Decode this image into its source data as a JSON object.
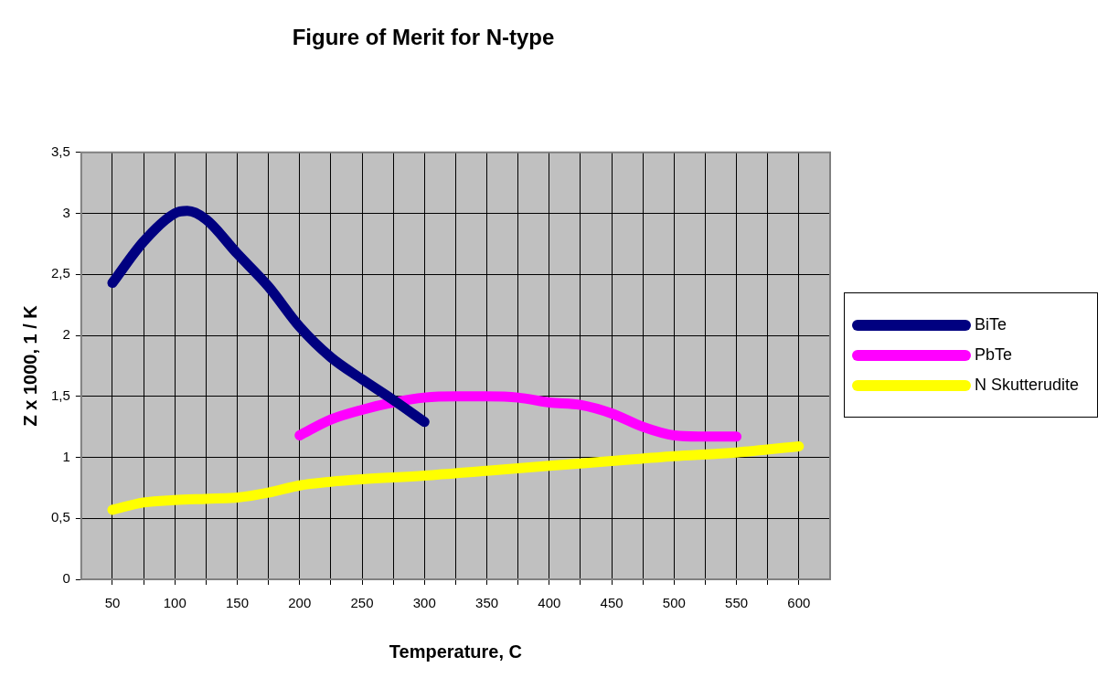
{
  "chart_data": {
    "type": "line",
    "title": "Figure of Merit for N-type",
    "xlabel": "Temperature, C",
    "ylabel": "Z x 1000, 1 / K",
    "xlim": [
      25,
      625
    ],
    "xticks": [
      50,
      {
        "value": 75,
        "label": null
      },
      100,
      {
        "value": 125,
        "label": null
      },
      150,
      {
        "value": 175,
        "label": null
      },
      200,
      {
        "value": 225,
        "label": null
      },
      250,
      {
        "value": 275,
        "label": null
      },
      300,
      {
        "value": 325,
        "label": null
      },
      350,
      {
        "value": 375,
        "label": null
      },
      400,
      {
        "value": 425,
        "label": null
      },
      450,
      {
        "value": 475,
        "label": null
      },
      500,
      {
        "value": 525,
        "label": null
      },
      550,
      {
        "value": 575,
        "label": null
      },
      600
    ],
    "ylim": [
      0,
      3.5
    ],
    "yticks": [
      0,
      {
        "value": 0.5,
        "label": "0,5"
      },
      1,
      {
        "value": 1.5,
        "label": "1,5"
      },
      2,
      {
        "value": 2.5,
        "label": "2,5"
      },
      3,
      {
        "value": 3.5,
        "label": "3,5"
      }
    ],
    "grid": true,
    "legend": "right",
    "marker": "none",
    "series": [
      {
        "name": "BiTe",
        "color": "#000080",
        "x": [
          50,
          75,
          100,
          110,
          125,
          150,
          175,
          200,
          225,
          250,
          275,
          300
        ],
        "values": [
          2.43,
          2.77,
          3.0,
          3.02,
          2.95,
          2.67,
          2.4,
          2.07,
          1.82,
          1.64,
          1.47,
          1.29
        ]
      },
      {
        "name": "PbTe",
        "color": "#ff00ff",
        "x": [
          200,
          225,
          250,
          275,
          300,
          325,
          350,
          375,
          400,
          425,
          450,
          475,
          500,
          525,
          550
        ],
        "values": [
          1.18,
          1.31,
          1.39,
          1.45,
          1.49,
          1.5,
          1.5,
          1.49,
          1.45,
          1.43,
          1.36,
          1.25,
          1.18,
          1.17,
          1.17
        ]
      },
      {
        "name": "N Skutterudite",
        "color": "#ffff00",
        "x": [
          50,
          75,
          100,
          125,
          150,
          175,
          200,
          225,
          250,
          300,
          350,
          400,
          450,
          500,
          550,
          600
        ],
        "values": [
          0.57,
          0.63,
          0.65,
          0.66,
          0.67,
          0.71,
          0.77,
          0.8,
          0.82,
          0.85,
          0.89,
          0.93,
          0.97,
          1.01,
          1.04,
          1.09
        ]
      }
    ]
  }
}
